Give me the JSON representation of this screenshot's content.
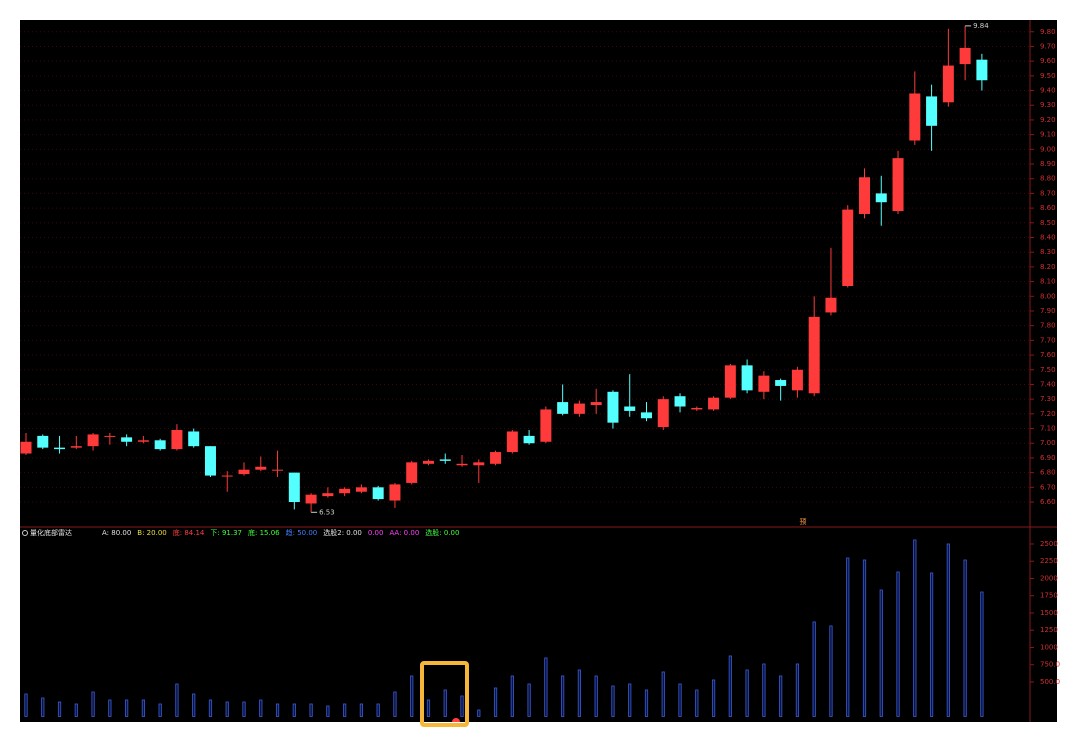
{
  "chart_data": [
    {
      "type": "candlestick",
      "up_color": "#ff3a3a",
      "down_color": "#54ffff",
      "open": [
        6.93,
        7.05,
        6.97,
        6.97,
        6.98,
        7.05,
        7.04,
        7.01,
        7.02,
        6.96,
        7.08,
        6.98,
        6.78,
        6.79,
        6.82,
        6.82,
        6.8,
        6.59,
        6.64,
        6.66,
        6.67,
        6.7,
        6.61,
        6.73,
        6.86,
        6.89,
        6.85,
        6.85,
        6.86,
        6.94,
        7.05,
        7.01,
        7.28,
        7.2,
        7.26,
        7.35,
        7.25,
        7.21,
        7.11,
        7.32,
        7.23,
        7.23,
        7.31,
        7.53,
        7.35,
        7.43,
        7.36,
        7.34,
        7.89,
        8.07,
        8.56,
        8.7,
        8.58,
        9.06,
        9.36,
        9.32,
        9.58,
        9.61
      ],
      "high": [
        7.07,
        7.06,
        7.05,
        7.05,
        7.07,
        7.07,
        7.06,
        7.05,
        7.03,
        7.13,
        7.1,
        6.98,
        6.81,
        6.87,
        6.91,
        6.95,
        6.8,
        6.66,
        6.7,
        6.7,
        6.72,
        6.71,
        6.73,
        6.88,
        6.89,
        6.93,
        6.92,
        6.89,
        6.95,
        7.09,
        7.09,
        7.25,
        7.4,
        7.29,
        7.37,
        7.36,
        7.47,
        7.28,
        7.32,
        7.34,
        7.25,
        7.32,
        7.54,
        7.57,
        7.49,
        7.44,
        7.52,
        8.0,
        8.33,
        8.62,
        8.87,
        8.82,
        8.99,
        9.53,
        9.44,
        9.82,
        9.84,
        9.65
      ],
      "low": [
        6.92,
        6.96,
        6.93,
        6.96,
        6.95,
        6.99,
        6.98,
        7.0,
        6.95,
        6.95,
        6.97,
        6.77,
        6.67,
        6.78,
        6.81,
        6.77,
        6.55,
        6.53,
        6.63,
        6.64,
        6.66,
        6.61,
        6.56,
        6.72,
        6.85,
        6.86,
        6.84,
        6.73,
        6.85,
        6.93,
        6.99,
        7.0,
        7.19,
        7.18,
        7.2,
        7.1,
        7.18,
        7.15,
        7.09,
        7.21,
        7.22,
        7.22,
        7.3,
        7.34,
        7.3,
        7.29,
        7.31,
        7.32,
        7.87,
        8.06,
        8.53,
        8.48,
        8.56,
        9.03,
        8.99,
        9.29,
        9.47,
        9.4
      ],
      "close": [
        7.01,
        6.97,
        6.96,
        6.98,
        7.06,
        7.05,
        7.01,
        7.02,
        6.96,
        7.09,
        6.98,
        6.78,
        6.78,
        6.82,
        6.84,
        6.82,
        6.6,
        6.65,
        6.66,
        6.69,
        6.7,
        6.62,
        6.72,
        6.87,
        6.88,
        6.88,
        6.86,
        6.87,
        6.94,
        7.08,
        7.0,
        7.23,
        7.2,
        7.27,
        7.28,
        7.14,
        7.22,
        7.17,
        7.3,
        7.25,
        7.24,
        7.31,
        7.53,
        7.36,
        7.46,
        7.39,
        7.5,
        7.86,
        7.99,
        8.59,
        8.81,
        8.64,
        8.94,
        9.38,
        9.16,
        9.57,
        9.69,
        9.47
      ],
      "annotations": [
        {
          "value": 9.84,
          "label": "9.84"
        },
        {
          "value": 6.53,
          "label": "6.53"
        }
      ],
      "signal_label": "预",
      "ylim": [
        6.43,
        9.88
      ],
      "yticks": [
        {
          "value": 9.8,
          "label": "9.80"
        },
        {
          "value": 9.7,
          "label": "9.70"
        },
        {
          "value": 9.6,
          "label": "9.60"
        },
        {
          "value": 9.5,
          "label": "9.50"
        },
        {
          "value": 9.4,
          "label": "9.40"
        },
        {
          "value": 9.3,
          "label": "9.30"
        },
        {
          "value": 9.2,
          "label": "9.20"
        },
        {
          "value": 9.1,
          "label": "9.10"
        },
        {
          "value": 9.0,
          "label": "9.00"
        },
        {
          "value": 8.9,
          "label": "8.90"
        },
        {
          "value": 8.8,
          "label": "8.80"
        },
        {
          "value": 8.7,
          "label": "8.70"
        },
        {
          "value": 8.6,
          "label": "8.60"
        },
        {
          "value": 8.5,
          "label": "8.50"
        },
        {
          "value": 8.4,
          "label": "8.40"
        },
        {
          "value": 8.3,
          "label": "8.30"
        },
        {
          "value": 8.2,
          "label": "8.20"
        },
        {
          "value": 8.1,
          "label": "8.10"
        },
        {
          "value": 8.0,
          "label": "8.00"
        },
        {
          "value": 7.9,
          "label": "7.90"
        },
        {
          "value": 7.8,
          "label": "7.80"
        },
        {
          "value": 7.7,
          "label": "7.70"
        },
        {
          "value": 7.6,
          "label": "7.60"
        },
        {
          "value": 7.5,
          "label": "7.50"
        },
        {
          "value": 7.4,
          "label": "7.40"
        },
        {
          "value": 7.3,
          "label": "7.30"
        },
        {
          "value": 7.2,
          "label": "7.20"
        },
        {
          "value": 7.1,
          "label": "7.10"
        },
        {
          "value": 7.0,
          "label": "7.00"
        },
        {
          "value": 6.9,
          "label": "6.90"
        },
        {
          "value": 6.8,
          "label": "6.80"
        },
        {
          "value": 6.7,
          "label": "6.70"
        },
        {
          "value": 6.6,
          "label": "6.60"
        }
      ],
      "grid": true
    },
    {
      "type": "bar",
      "title": "量化底部雷达",
      "header": [
        {
          "text": "A: 80.00",
          "color": "#e0e0e0"
        },
        {
          "text": "B: 20.00",
          "color": "#e8e040"
        },
        {
          "text": "底: 84.14",
          "color": "#ff4040"
        },
        {
          "text": "下: 91.37",
          "color": "#40ff40"
        },
        {
          "text": "底: 15.06",
          "color": "#40ff40"
        },
        {
          "text": "趋: 50.00",
          "color": "#4080ff"
        },
        {
          "text": "选股2: 0.00",
          "color": "#e0e0e0"
        },
        {
          "text": "0.00",
          "color": "#ff40ff"
        },
        {
          "text": "AA: 0.00",
          "color": "#ff40ff"
        },
        {
          "text": "选股: 0.00",
          "color": "#40ff40"
        }
      ],
      "color": "#3a5cd8",
      "values": [
        326,
        268,
        210,
        181,
        355,
        239,
        239,
        239,
        181,
        471,
        326,
        239,
        210,
        210,
        239,
        181,
        181,
        181,
        152,
        181,
        181,
        181,
        355,
        587,
        239,
        384,
        297,
        94,
        413,
        587,
        471,
        848,
        587,
        674,
        587,
        442,
        471,
        384,
        645,
        471,
        384,
        529,
        877,
        674,
        761,
        587,
        761,
        1370,
        1312,
        2297,
        2268,
        1833,
        2094,
        2558,
        2080,
        2500,
        2268,
        1804
      ],
      "ylim": [
        -80,
        2746
      ],
      "yticks": [
        2500,
        2250,
        2000,
        1750,
        1500,
        1250,
        1000,
        {
          "value": 750,
          "label": "750.0"
        },
        {
          "value": 500,
          "label": "500.0"
        }
      ]
    }
  ]
}
